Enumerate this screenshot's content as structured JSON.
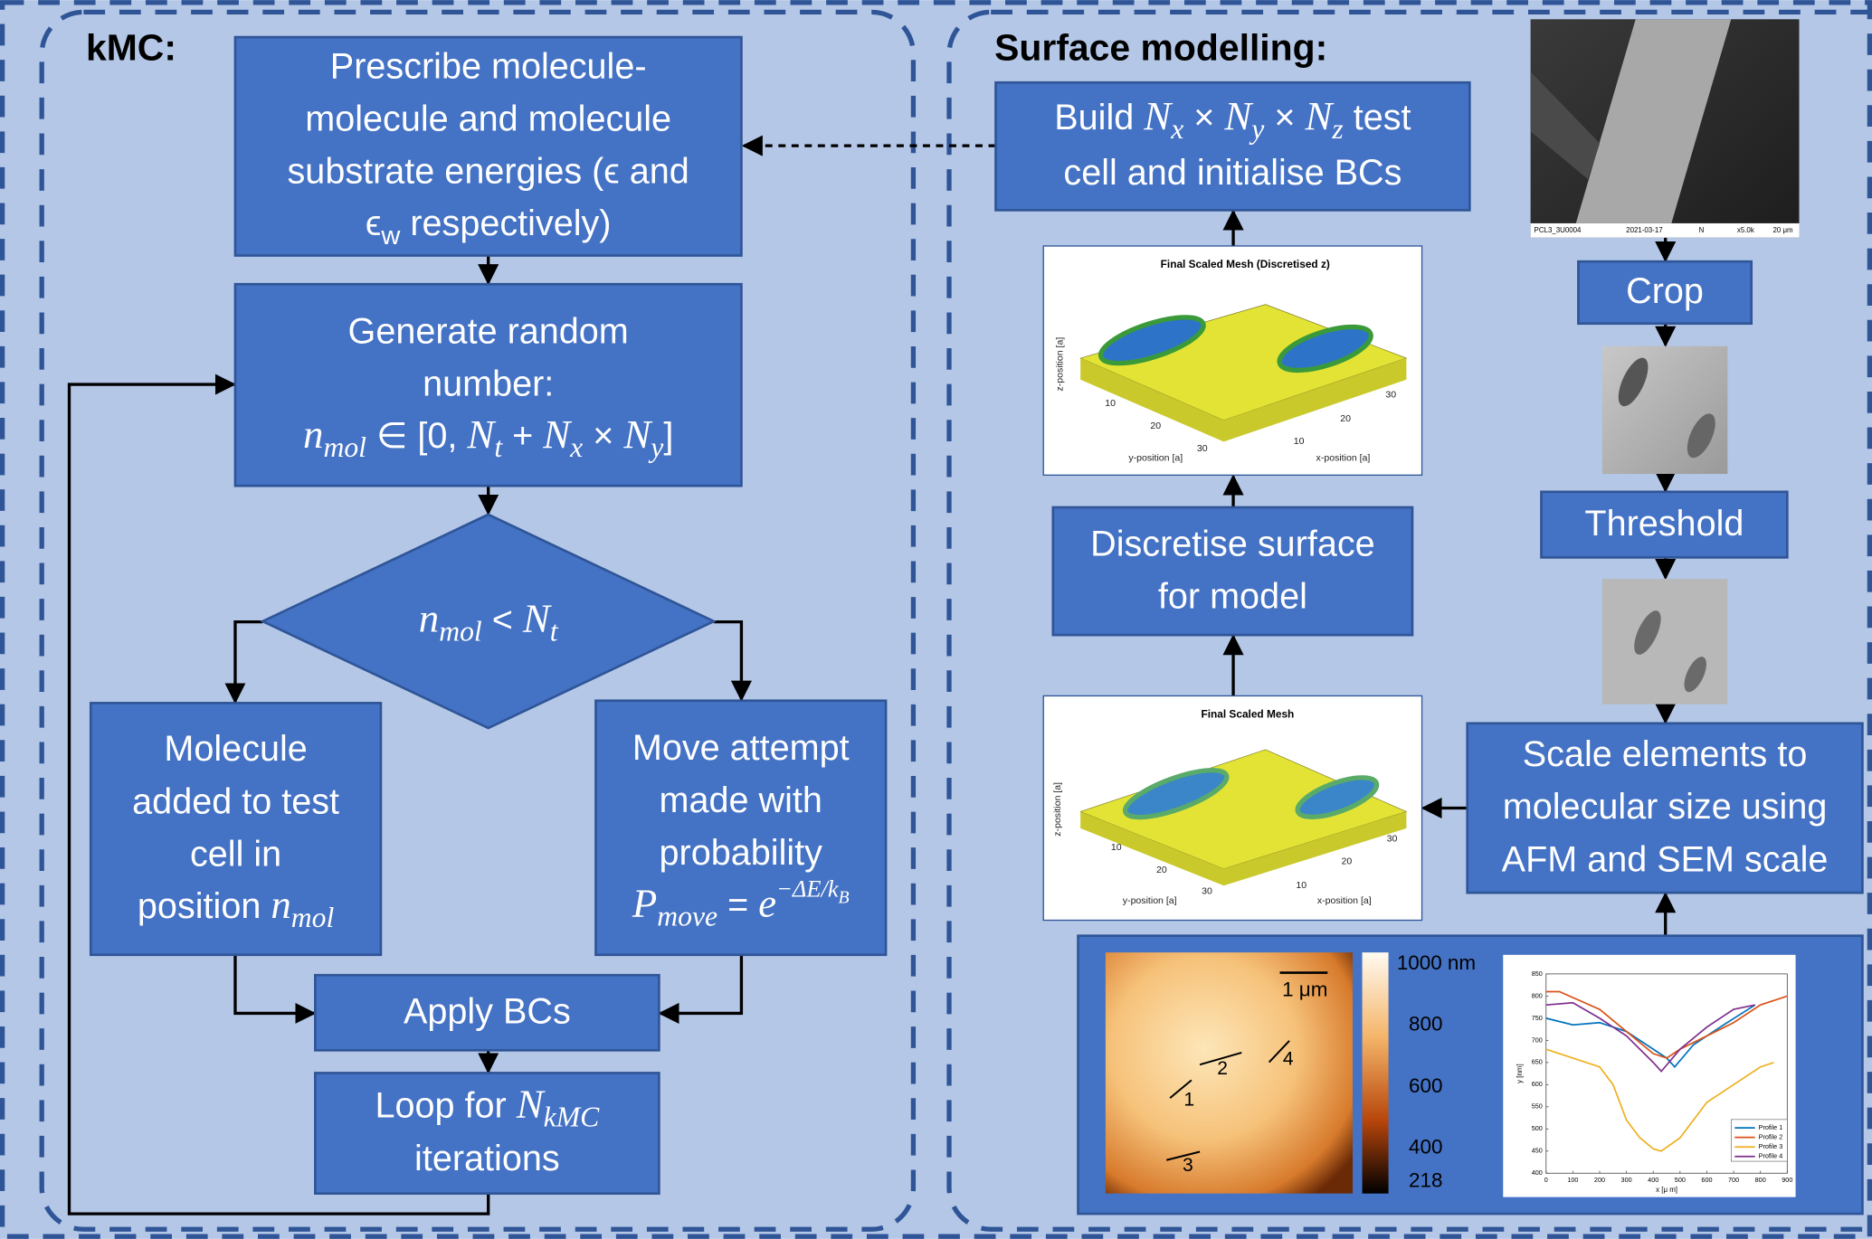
{
  "sections": {
    "kmc_title": "kMC:",
    "surface_title": "Surface modelling:"
  },
  "nodes": [
    {
      "lines": [
        "Prescribe molecule-",
        "molecule and molecule",
        "substrate energies (ϵ and",
        [
          "ϵ",
          {
            "s": "w"
          },
          " respectively)"
        ]
      ]
    },
    {
      "lines": [
        "Generate random",
        "number:",
        [
          {
            "i": "n"
          },
          {
            "sub": "mol"
          },
          " ∈ [0, ",
          {
            "i": "N"
          },
          {
            "sub": "t"
          },
          " + ",
          {
            "i": "N"
          },
          {
            "sub": "x"
          },
          " × ",
          {
            "i": "N"
          },
          {
            "sub": "y"
          },
          "]"
        ]
      ]
    },
    {
      "lines": [
        [
          {
            "i": "n"
          },
          {
            "sub": "mol"
          },
          " < ",
          {
            "i": "N"
          },
          {
            "sub": "t"
          }
        ]
      ]
    },
    {
      "lines": [
        "Molecule",
        "added to test",
        "cell in",
        [
          "position ",
          {
            "i": "n"
          },
          {
            "sub": "mol"
          }
        ]
      ]
    },
    {
      "lines": [
        "Move attempt",
        "made with",
        "probability",
        [
          {
            "i": "P"
          },
          {
            "sub": "move"
          },
          " = ",
          {
            "i": "e"
          },
          {
            "sup": "−ΔE/k"
          },
          {
            "supsub": "B"
          }
        ]
      ]
    },
    {
      "lines": [
        "Apply BCs"
      ]
    },
    {
      "lines": [
        [
          "Loop for ",
          {
            "i": "N"
          },
          {
            "sub": "kMC"
          }
        ],
        "iterations"
      ]
    },
    {
      "lines": [
        [
          "Build ",
          {
            "i": "N"
          },
          {
            "sub": "x"
          },
          " × ",
          {
            "i": "N"
          },
          {
            "sub": "y"
          },
          " × ",
          {
            "i": "N"
          },
          {
            "sub": "z"
          },
          " test"
        ],
        "cell and initialise BCs"
      ]
    },
    {
      "lines": [
        "Discretise surface",
        "for model"
      ]
    },
    {
      "lines": [
        "Crop"
      ]
    },
    {
      "lines": [
        "Threshold"
      ]
    },
    {
      "lines": [
        "Scale elements to",
        "molecular size using",
        "AFM and SEM scale"
      ]
    }
  ],
  "meshes": [
    {
      "title": "Final Scaled Mesh (Discretised z)",
      "x_label": "x-position [a]",
      "y_label": "y-position [a]",
      "z_label": "z-position [a]",
      "xticks": [
        10,
        20,
        30
      ],
      "yticks": [
        10,
        20,
        30
      ]
    },
    {
      "title": "Final Scaled Mesh",
      "x_label": "x-position [a]",
      "y_label": "y-position [a]",
      "z_label": "z-position [a]",
      "xticks": [
        10,
        20,
        30
      ],
      "yticks": [
        10,
        20,
        30
      ]
    }
  ],
  "sem": {
    "caption": [
      "PCL3_3U0004",
      "2021-03-17",
      "N",
      "x5.0k",
      "20 μm"
    ]
  },
  "afm": {
    "scale_bar": "1 μm",
    "profile_markers": [
      "1",
      "2",
      "3",
      "4"
    ],
    "colorbar_labels": [
      "1000 nm",
      "800",
      "600",
      "400",
      "218"
    ]
  },
  "chart_data": {
    "type": "line",
    "x_label": "x [μ m]",
    "y_label": "y [nm]",
    "xlim": [
      0,
      900
    ],
    "xticks": [
      0,
      100,
      200,
      300,
      400,
      500,
      600,
      700,
      800,
      900
    ],
    "ylim": [
      400,
      850
    ],
    "yticks": [
      400,
      450,
      500,
      550,
      600,
      650,
      700,
      750,
      800,
      850
    ],
    "series": [
      {
        "name": "Profile 1",
        "color": "#0072bd",
        "x": [
          0,
          100,
          200,
          300,
          400,
          450,
          480,
          550,
          650,
          780
        ],
        "values": [
          750,
          735,
          740,
          720,
          680,
          660,
          640,
          690,
          730,
          780
        ]
      },
      {
        "name": "Profile 2",
        "color": "#d95319",
        "x": [
          0,
          50,
          200,
          300,
          400,
          450,
          500,
          600,
          700,
          800,
          900
        ],
        "values": [
          810,
          810,
          770,
          720,
          670,
          660,
          680,
          710,
          740,
          780,
          800
        ]
      },
      {
        "name": "Profile 3",
        "color": "#edb120",
        "x": [
          0,
          100,
          200,
          250,
          300,
          350,
          400,
          430,
          500,
          600,
          700,
          800,
          850
        ],
        "values": [
          680,
          660,
          640,
          600,
          520,
          480,
          455,
          450,
          480,
          560,
          600,
          640,
          650
        ]
      },
      {
        "name": "Profile 4",
        "color": "#7e2f8e",
        "x": [
          0,
          100,
          200,
          300,
          400,
          430,
          500,
          600,
          700,
          780
        ],
        "values": [
          780,
          785,
          750,
          710,
          650,
          630,
          680,
          730,
          770,
          780
        ]
      }
    ]
  }
}
